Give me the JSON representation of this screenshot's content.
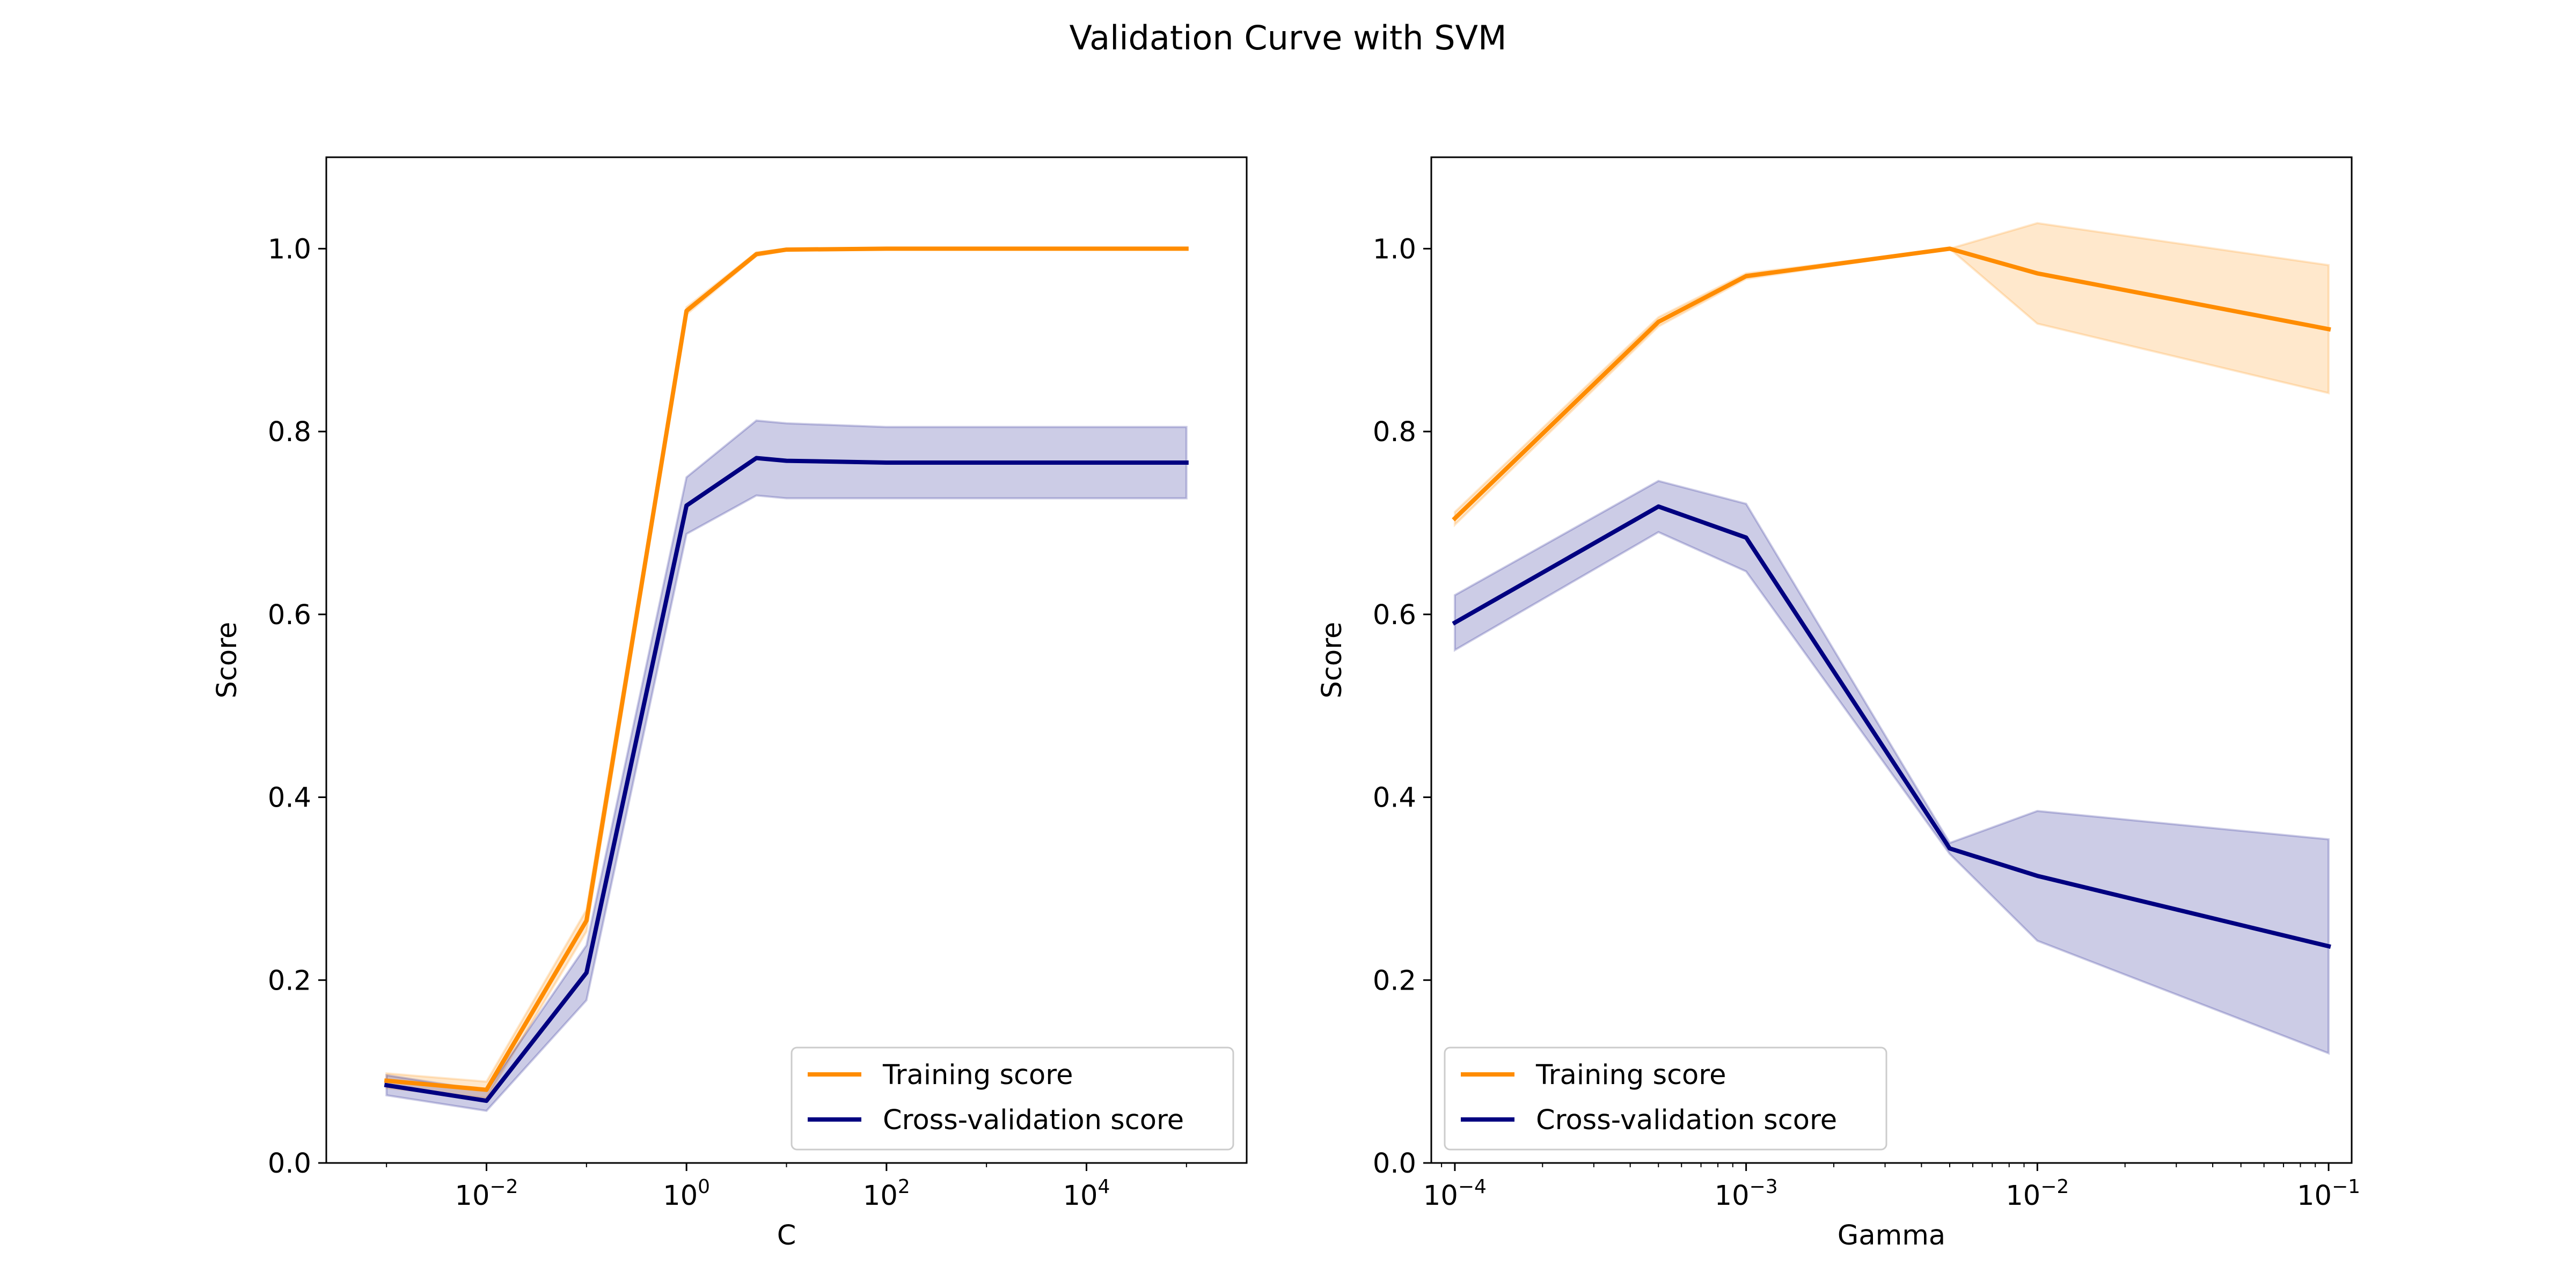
{
  "figure": {
    "title": "Validation Curve with SVM"
  },
  "chart_data": [
    {
      "type": "line",
      "xscale": "log",
      "xlabel": "C",
      "ylabel": "Score",
      "xlim": [
        0.00025,
        400000
      ],
      "ylim": [
        0.0,
        1.1
      ],
      "xticks": [
        0.01,
        1,
        100,
        10000
      ],
      "xtick_labels": [
        "10^-2",
        "10^0",
        "10^2",
        "10^4"
      ],
      "yticks": [
        0.0,
        0.2,
        0.4,
        0.6,
        0.8,
        1.0
      ],
      "ytick_labels": [
        "0.0",
        "0.2",
        "0.4",
        "0.6",
        "0.8",
        "1.0"
      ],
      "grid": false,
      "legend": "lower-right",
      "x": [
        0.001,
        0.01,
        0.1,
        1,
        5,
        10,
        100,
        1000,
        10000,
        100000
      ],
      "series": [
        {
          "name": "Training score",
          "color": "#ff8c00",
          "values": [
            0.09,
            0.08,
            0.265,
            0.932,
            0.994,
            0.999,
            1.0,
            1.0,
            1.0,
            1.0
          ],
          "band_low": [
            0.082,
            0.071,
            0.253,
            0.928,
            0.992,
            0.998,
            1.0,
            1.0,
            1.0,
            1.0
          ],
          "band_high": [
            0.098,
            0.089,
            0.277,
            0.936,
            0.996,
            1.0,
            1.0,
            1.0,
            1.0,
            1.0
          ]
        },
        {
          "name": "Cross-validation score",
          "color": "#000080",
          "values": [
            0.085,
            0.068,
            0.208,
            0.719,
            0.771,
            0.768,
            0.766,
            0.766,
            0.766,
            0.766
          ],
          "band_low": [
            0.074,
            0.057,
            0.178,
            0.688,
            0.73,
            0.727,
            0.727,
            0.727,
            0.727,
            0.727
          ],
          "band_high": [
            0.096,
            0.079,
            0.238,
            0.75,
            0.812,
            0.809,
            0.805,
            0.805,
            0.805,
            0.805
          ]
        }
      ]
    },
    {
      "type": "line",
      "xscale": "log",
      "xlabel": "Gamma",
      "ylabel": "Score",
      "xlim": [
        8.3e-05,
        0.12
      ],
      "ylim": [
        0.0,
        1.1
      ],
      "xticks": [
        0.0001,
        0.001,
        0.01,
        0.1
      ],
      "xtick_labels": [
        "10^-4",
        "10^-3",
        "10^-2",
        "10^-1"
      ],
      "yticks": [
        0.0,
        0.2,
        0.4,
        0.6,
        0.8,
        1.0
      ],
      "ytick_labels": [
        "0.0",
        "0.2",
        "0.4",
        "0.6",
        "0.8",
        "1.0"
      ],
      "grid": false,
      "legend": "lower-left",
      "x": [
        0.0001,
        0.0005,
        0.001,
        0.005,
        0.01,
        0.1
      ],
      "series": [
        {
          "name": "Training score",
          "color": "#ff8c00",
          "values": [
            0.705,
            0.92,
            0.97,
            1.0,
            0.973,
            0.912
          ],
          "band_low": [
            0.698,
            0.915,
            0.967,
            1.0,
            0.918,
            0.842
          ],
          "band_high": [
            0.712,
            0.925,
            0.973,
            1.0,
            1.028,
            0.982
          ]
        },
        {
          "name": "Cross-validation score",
          "color": "#000080",
          "values": [
            0.591,
            0.718,
            0.684,
            0.344,
            0.314,
            0.237
          ],
          "band_low": [
            0.561,
            0.69,
            0.647,
            0.338,
            0.243,
            0.12
          ],
          "band_high": [
            0.621,
            0.746,
            0.721,
            0.35,
            0.385,
            0.354
          ]
        }
      ]
    }
  ]
}
